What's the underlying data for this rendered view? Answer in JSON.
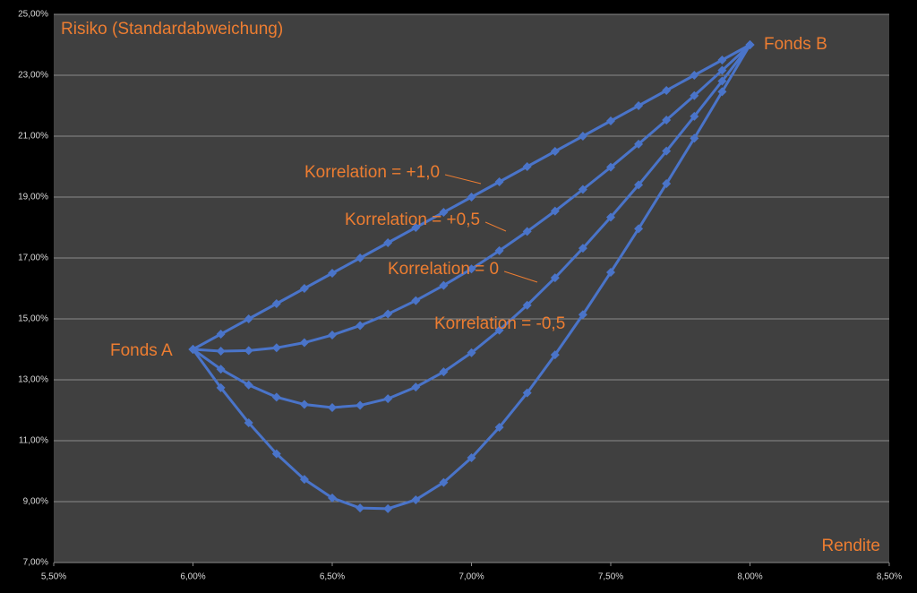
{
  "chart_data": {
    "type": "line",
    "y_label": "Risiko (Standardabweichung)",
    "x_label": "Rendite",
    "annotations": [
      "Fonds A",
      "Fonds B"
    ],
    "x": [
      6.0,
      6.1,
      6.2,
      6.3,
      6.4,
      6.5,
      6.6,
      6.7,
      6.8,
      6.9,
      7.0,
      7.1,
      7.2,
      7.3,
      7.4,
      7.5,
      7.6,
      7.7,
      7.8,
      7.9,
      8.0
    ],
    "series": [
      {
        "name": "Korrelation = +1,0",
        "color": "#4a74c9",
        "values": [
          14,
          14.5,
          15,
          15.5,
          16,
          16.5,
          17,
          17.5,
          18,
          18.5,
          19,
          19.5,
          20,
          20.5,
          21,
          21.5,
          22,
          22.5,
          23,
          23.5,
          24
        ]
      },
      {
        "name": "Korrelation = +0,5",
        "color": "#4a74c9",
        "values": [
          14,
          13.94,
          13.96,
          14.05,
          14.22,
          14.47,
          14.78,
          15.16,
          15.6,
          16.1,
          16.64,
          17.24,
          17.87,
          18.54,
          19.25,
          19.98,
          20.74,
          21.53,
          22.33,
          23.16,
          24
        ]
      },
      {
        "name": "Korrelation = 0",
        "color": "#4a74c9",
        "values": [
          14,
          13.35,
          12.83,
          12.43,
          12.19,
          12.09,
          12.16,
          12.38,
          12.76,
          13.26,
          13.89,
          14.63,
          15.45,
          16.35,
          17.32,
          18.34,
          19.4,
          20.51,
          21.65,
          22.81,
          24
        ]
      },
      {
        "name": "Korrelation = -0,5",
        "color": "#4a74c9",
        "values": [
          14,
          12.74,
          11.59,
          10.57,
          9.73,
          9.12,
          8.79,
          8.77,
          9.06,
          9.63,
          10.44,
          11.44,
          12.57,
          13.82,
          15.14,
          16.53,
          17.96,
          19.44,
          20.93,
          22.46,
          24
        ]
      }
    ],
    "xlim": [
      5.5,
      8.5
    ],
    "xticks": [
      {
        "value": 5.5,
        "label": "5,50%"
      },
      {
        "value": 6.0,
        "label": "6,00%"
      },
      {
        "value": 6.5,
        "label": "6,50%"
      },
      {
        "value": 7.0,
        "label": "7,00%"
      },
      {
        "value": 7.5,
        "label": "7,50%"
      },
      {
        "value": 8.0,
        "label": "8,00%"
      },
      {
        "value": 8.5,
        "label": "8,50%"
      }
    ],
    "ylim": [
      7,
      25
    ],
    "yticks": [
      {
        "value": 7,
        "label": "7,00%"
      },
      {
        "value": 9,
        "label": "9,00%"
      },
      {
        "value": 11,
        "label": "11,00%"
      },
      {
        "value": 13,
        "label": "13,00%"
      },
      {
        "value": 15,
        "label": "15,00%"
      },
      {
        "value": 17,
        "label": "17,00%"
      },
      {
        "value": 19,
        "label": "19,00%"
      },
      {
        "value": 21,
        "label": "21,00%"
      },
      {
        "value": 23,
        "label": "23,00%"
      },
      {
        "value": 25,
        "label": "25,00%"
      }
    ],
    "grid": true,
    "text_color": "#ed7d31"
  }
}
